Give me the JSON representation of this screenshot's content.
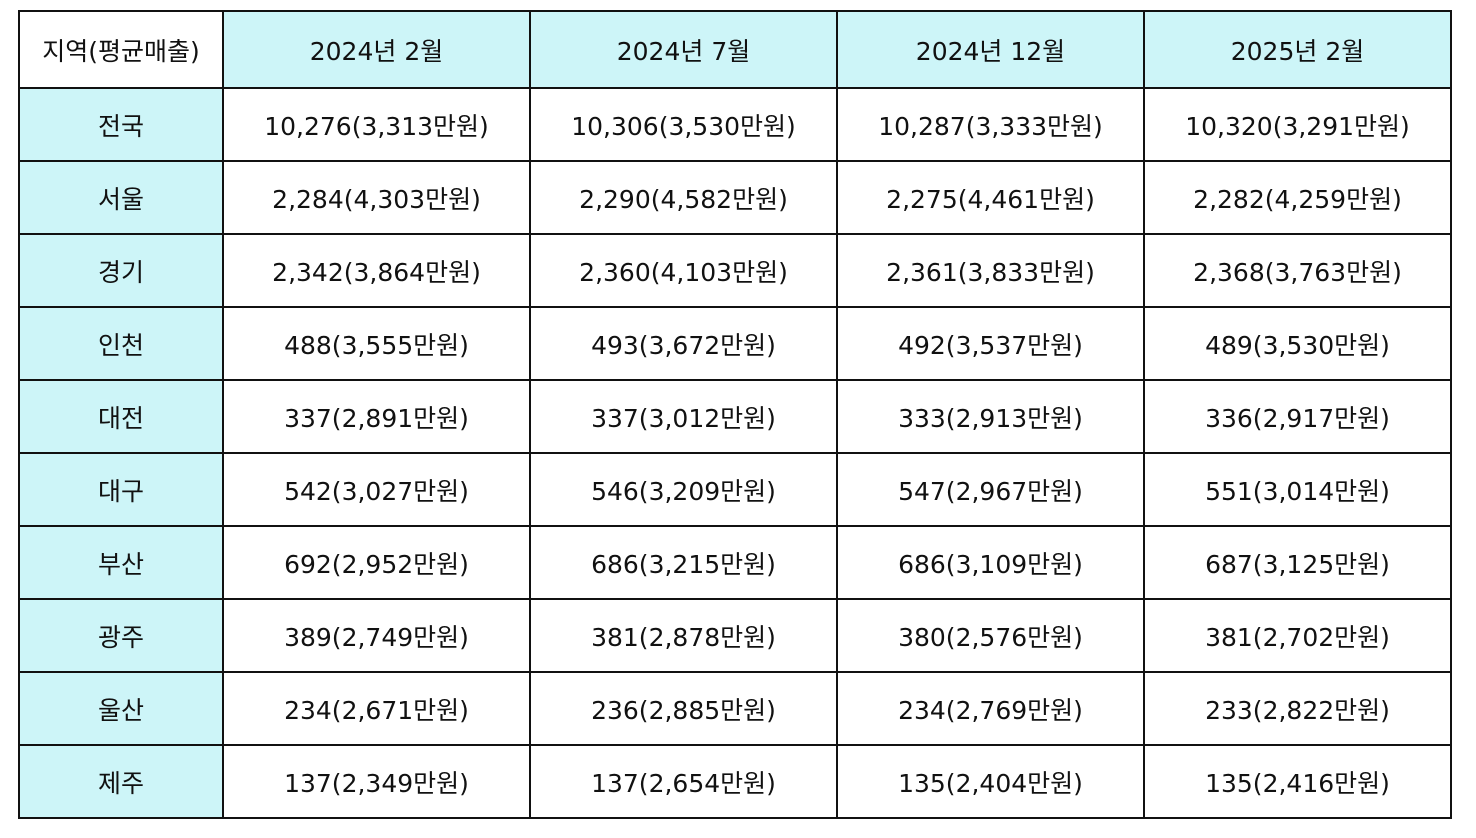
{
  "table": {
    "header": [
      "지역(평균매출)",
      "2024년 2월",
      "2024년 7월",
      "2024년 12월",
      "2025년 2월"
    ],
    "rows": [
      [
        "전국",
        "10,276(3,313만원)",
        "10,306(3,530만원)",
        "10,287(3,333만원)",
        "10,320(3,291만원)"
      ],
      [
        "서울",
        "2,284(4,303만원)",
        "2,290(4,582만원)",
        "2,275(4,461만원)",
        "2,282(4,259만원)"
      ],
      [
        "경기",
        "2,342(3,864만원)",
        "2,360(4,103만원)",
        "2,361(3,833만원)",
        "2,368(3,763만원)"
      ],
      [
        "인천",
        "488(3,555만원)",
        "493(3,672만원)",
        "492(3,537만원)",
        "489(3,530만원)"
      ],
      [
        "대전",
        "337(2,891만원)",
        "337(3,012만원)",
        "333(2,913만원)",
        "336(2,917만원)"
      ],
      [
        "대구",
        "542(3,027만원)",
        "546(3,209만원)",
        "547(2,967만원)",
        "551(3,014만원)"
      ],
      [
        "부산",
        "692(2,952만원)",
        "686(3,215만원)",
        "686(3,109만원)",
        "687(3,125만원)"
      ],
      [
        "광주",
        "389(2,749만원)",
        "381(2,878만원)",
        "380(2,576만원)",
        "381(2,702만원)"
      ],
      [
        "울산",
        "234(2,671만원)",
        "236(2,885만원)",
        "234(2,769만원)",
        "233(2,822만원)"
      ],
      [
        "제주",
        "137(2,349만원)",
        "137(2,654만원)",
        "135(2,404만원)",
        "135(2,416만원)"
      ]
    ]
  }
}
